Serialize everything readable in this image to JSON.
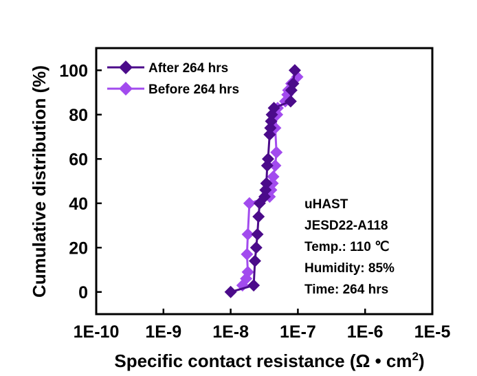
{
  "chart_data": {
    "type": "scatter",
    "xscale": "log",
    "xlim": [
      1e-10,
      1e-05
    ],
    "ylim": [
      -10,
      110
    ],
    "xlabel": "Specific contact resistance (Ω • cm",
    "xlabel_sup": "2",
    "xlabel_close": ")",
    "ylabel": "Cumulative distribution (%)",
    "x_ticks": [
      {
        "value": 1e-10,
        "label": "1E-10"
      },
      {
        "value": 1e-09,
        "label": "1E-9"
      },
      {
        "value": 1e-08,
        "label": "1E-8"
      },
      {
        "value": 1e-07,
        "label": "1E-7"
      },
      {
        "value": 1e-06,
        "label": "1E-6"
      },
      {
        "value": 1e-05,
        "label": "1E-5"
      }
    ],
    "y_ticks": [
      {
        "value": 0,
        "label": "0"
      },
      {
        "value": 20,
        "label": "20"
      },
      {
        "value": 40,
        "label": "40"
      },
      {
        "value": 60,
        "label": "60"
      },
      {
        "value": 80,
        "label": "80"
      },
      {
        "value": 100,
        "label": "100"
      }
    ],
    "legend_position": "top-left",
    "series": [
      {
        "name": "After 264 hrs",
        "color": "#4B0B8A",
        "marker": "diamond",
        "points": [
          {
            "x": 1e-08,
            "y": 0
          },
          {
            "x": 2.2e-08,
            "y": 3
          },
          {
            "x": 2.3e-08,
            "y": 14
          },
          {
            "x": 2.4e-08,
            "y": 20
          },
          {
            "x": 2.5e-08,
            "y": 26
          },
          {
            "x": 2.6e-08,
            "y": 34
          },
          {
            "x": 2.7e-08,
            "y": 40
          },
          {
            "x": 3.2e-08,
            "y": 43
          },
          {
            "x": 3.3e-08,
            "y": 46
          },
          {
            "x": 3.4e-08,
            "y": 49
          },
          {
            "x": 3.5e-08,
            "y": 57
          },
          {
            "x": 3.6e-08,
            "y": 60
          },
          {
            "x": 3.8e-08,
            "y": 71
          },
          {
            "x": 3.9e-08,
            "y": 74
          },
          {
            "x": 4e-08,
            "y": 77
          },
          {
            "x": 4.1e-08,
            "y": 80
          },
          {
            "x": 4.4e-08,
            "y": 83
          },
          {
            "x": 7.8e-08,
            "y": 86
          },
          {
            "x": 8e-08,
            "y": 91
          },
          {
            "x": 8.5e-08,
            "y": 94
          },
          {
            "x": 9e-08,
            "y": 100
          }
        ]
      },
      {
        "name": "Before 264 hrs",
        "color": "#A24BEE",
        "marker": "diamond",
        "points": [
          {
            "x": 1.5e-08,
            "y": 3
          },
          {
            "x": 1.7e-08,
            "y": 6
          },
          {
            "x": 1.8e-08,
            "y": 9
          },
          {
            "x": 1.75e-08,
            "y": 17
          },
          {
            "x": 1.8e-08,
            "y": 26
          },
          {
            "x": 1.9e-08,
            "y": 40
          },
          {
            "x": 3.8e-08,
            "y": 43
          },
          {
            "x": 4e-08,
            "y": 46
          },
          {
            "x": 4.2e-08,
            "y": 49
          },
          {
            "x": 4.3e-08,
            "y": 52
          },
          {
            "x": 4.6e-08,
            "y": 57
          },
          {
            "x": 4.8e-08,
            "y": 63
          },
          {
            "x": 4.6e-08,
            "y": 74
          },
          {
            "x": 4.9e-08,
            "y": 80
          },
          {
            "x": 5e-08,
            "y": 83
          },
          {
            "x": 6.5e-08,
            "y": 86
          },
          {
            "x": 7e-08,
            "y": 89
          },
          {
            "x": 7.2e-08,
            "y": 91
          },
          {
            "x": 8e-08,
            "y": 94
          },
          {
            "x": 9.8e-08,
            "y": 97
          }
        ]
      }
    ],
    "annotations": [
      "uHAST",
      "JESD22-A118",
      "Temp.: 110 ℃",
      "Humidity: 85%",
      "Time: 264 hrs"
    ]
  }
}
